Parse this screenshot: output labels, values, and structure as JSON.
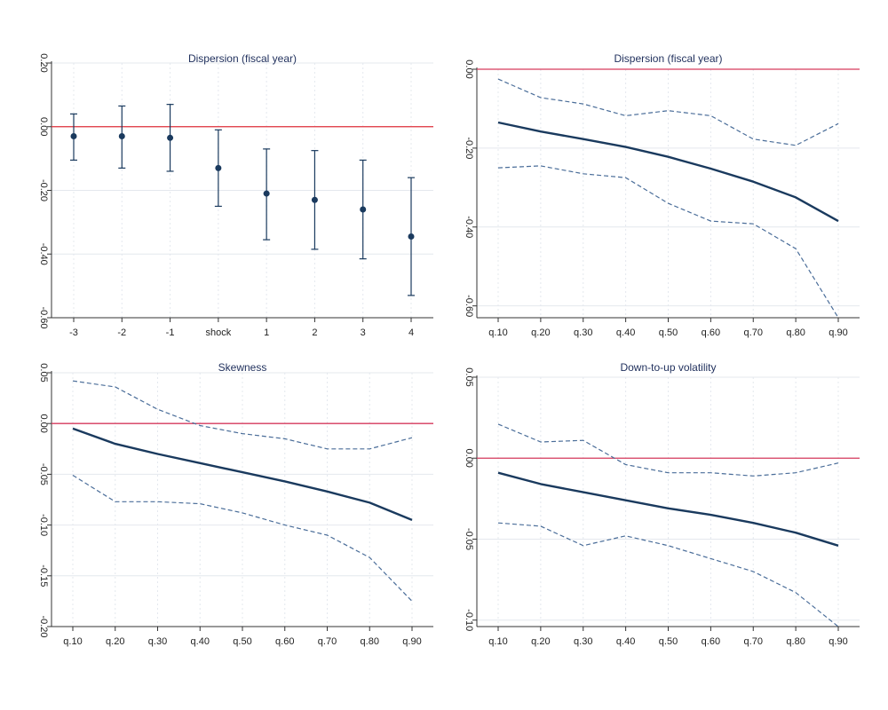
{
  "chart_data": [
    {
      "type": "errorbar",
      "title": "Dispersion (fiscal year)",
      "xlabel": "",
      "ylabel": "",
      "categories": [
        "-3",
        "-2",
        "-1",
        "shock",
        "1",
        "2",
        "3",
        "4"
      ],
      "values": [
        -0.03,
        -0.03,
        -0.035,
        -0.13,
        -0.21,
        -0.23,
        -0.26,
        -0.345
      ],
      "lower": [
        -0.105,
        -0.13,
        -0.14,
        -0.25,
        -0.355,
        -0.385,
        -0.415,
        -0.53
      ],
      "upper": [
        0.04,
        0.065,
        0.07,
        -0.01,
        -0.07,
        -0.075,
        -0.105,
        -0.16
      ],
      "ylim": [
        -0.6,
        0.2
      ],
      "yticks": [
        "0.20",
        "0.00",
        "-0.20",
        "-0.40",
        "-0.60"
      ],
      "reference_line": 0,
      "grid": true,
      "colors": {
        "series": "#1a3a5e",
        "reference": "#e0313b",
        "grid": "#e4e8ee"
      }
    },
    {
      "type": "line",
      "title": "Dispersion (fiscal year)",
      "xlabel": "",
      "ylabel": "",
      "categories": [
        "q.10",
        "q.20",
        "q.30",
        "q.40",
        "q.50",
        "q.60",
        "q.70",
        "q.80",
        "q.90"
      ],
      "series": [
        {
          "values": [
            -0.135,
            -0.158,
            -0.177,
            -0.197,
            -0.222,
            -0.252,
            -0.285,
            -0.325,
            -0.385
          ]
        },
        {
          "values": [
            -0.025,
            -0.072,
            -0.088,
            -0.118,
            -0.105,
            -0.118,
            -0.177,
            -0.193,
            -0.138
          ]
        },
        {
          "values": [
            -0.25,
            -0.245,
            -0.265,
            -0.275,
            -0.34,
            -0.385,
            -0.392,
            -0.455,
            -0.63
          ]
        }
      ],
      "ylim": [
        -0.63,
        0.0
      ],
      "yticks": [
        "0.00",
        "-0.20",
        "-0.40",
        "-0.60"
      ],
      "reference_line": 0,
      "grid": true,
      "colors": {
        "series": "#1a3a5e",
        "bands": "#4a6d99",
        "reference": "#d63a5c",
        "grid": "#e4e8ee"
      }
    },
    {
      "type": "line",
      "title": "Skewness",
      "xlabel": "",
      "ylabel": "",
      "categories": [
        "q.10",
        "q.20",
        "q.30",
        "q.40",
        "q.50",
        "q.60",
        "q.70",
        "q.80",
        "q.90"
      ],
      "series": [
        {
          "values": [
            -0.005,
            -0.02,
            -0.03,
            -0.039,
            -0.048,
            -0.057,
            -0.067,
            -0.078,
            -0.095
          ]
        },
        {
          "values": [
            0.042,
            0.036,
            0.014,
            -0.002,
            -0.01,
            -0.015,
            -0.025,
            -0.025,
            -0.014
          ]
        },
        {
          "values": [
            -0.051,
            -0.077,
            -0.077,
            -0.079,
            -0.088,
            -0.1,
            -0.11,
            -0.132,
            -0.175
          ]
        }
      ],
      "ylim": [
        -0.2,
        0.05
      ],
      "yticks": [
        "0.05",
        "0.00",
        "-0.05",
        "-0.10",
        "-0.15",
        "-0.20"
      ],
      "reference_line": 0,
      "grid": true,
      "colors": {
        "series": "#1a3a5e",
        "bands": "#4a6d99",
        "reference": "#d63a5c",
        "grid": "#e4e8ee"
      }
    },
    {
      "type": "line",
      "title": "Down-to-up volatility",
      "xlabel": "",
      "ylabel": "",
      "categories": [
        "q.10",
        "q.20",
        "q.30",
        "q.40",
        "q.50",
        "q.60",
        "q.70",
        "q.80",
        "q.90"
      ],
      "series": [
        {
          "values": [
            -0.009,
            -0.016,
            -0.021,
            -0.026,
            -0.031,
            -0.035,
            -0.04,
            -0.046,
            -0.054
          ]
        },
        {
          "values": [
            0.021,
            0.01,
            0.011,
            -0.004,
            -0.009,
            -0.009,
            -0.011,
            -0.009,
            -0.003
          ]
        },
        {
          "values": [
            -0.04,
            -0.042,
            -0.054,
            -0.048,
            -0.054,
            -0.062,
            -0.07,
            -0.083,
            -0.104
          ]
        }
      ],
      "ylim": [
        -0.104,
        0.05
      ],
      "yticks": [
        "0.05",
        "0.00",
        "-0.05",
        "-0.10"
      ],
      "reference_line": 0,
      "grid": true,
      "colors": {
        "series": "#1a3a5e",
        "bands": "#4a6d99",
        "reference": "#d63a5c",
        "grid": "#e4e8ee"
      }
    }
  ]
}
